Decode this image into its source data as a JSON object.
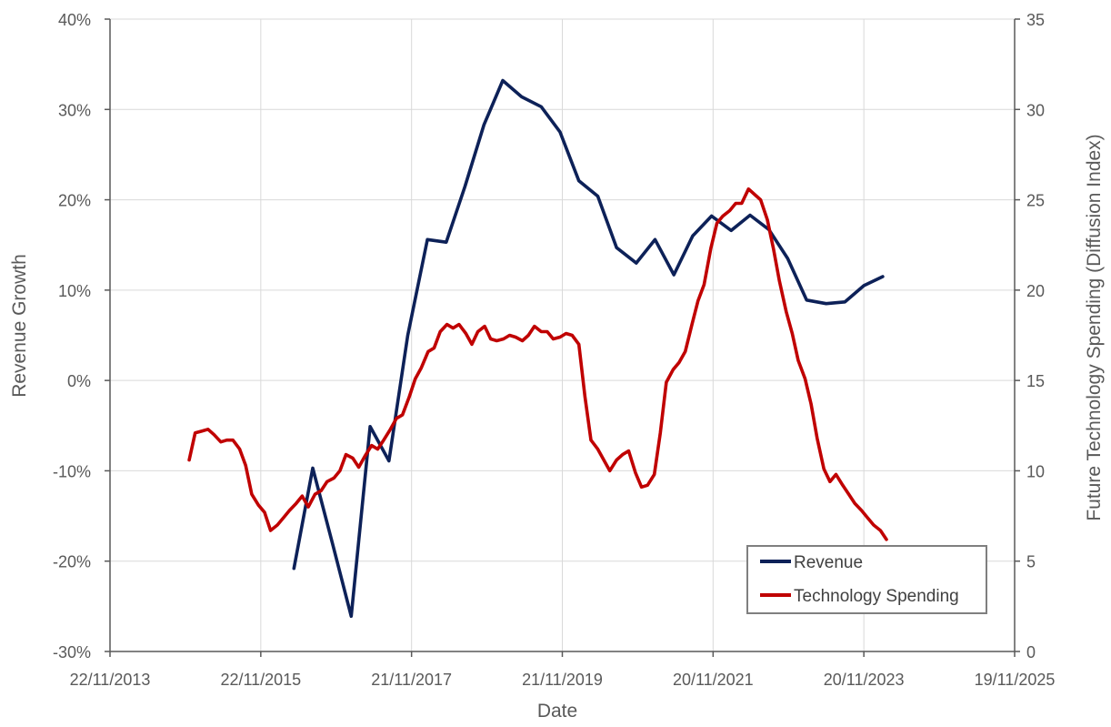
{
  "chart_data": {
    "type": "line",
    "xlabel": "Date",
    "ylabel_left": "Revenue Growth",
    "ylabel_right": "Future Technology Spending (Diffusion Index)",
    "x_ticks": [
      "22/11/2013",
      "22/11/2015",
      "21/11/2017",
      "21/11/2019",
      "20/11/2021",
      "20/11/2023",
      "19/11/2025"
    ],
    "x_tick_years": [
      2013.89,
      2015.89,
      2017.89,
      2019.89,
      2021.89,
      2023.89,
      2025.89
    ],
    "xlim": [
      2013.89,
      2025.89
    ],
    "y_left_ticks": [
      "-30%",
      "-20%",
      "-10%",
      "0%",
      "10%",
      "20%",
      "30%",
      "40%"
    ],
    "y_left_range": [
      -30,
      40
    ],
    "y_right_ticks": [
      "0",
      "5",
      "10",
      "15",
      "20",
      "25",
      "30",
      "35"
    ],
    "y_right_range": [
      0,
      35
    ],
    "grid": true,
    "legend_position": "bottom-right",
    "series": [
      {
        "name": "Revenue",
        "label": "Revenue",
        "color": "#0d2158",
        "axis": "left",
        "x": [
          2016.33,
          2016.58,
          2016.84,
          2017.09,
          2017.34,
          2017.59,
          2017.84,
          2018.1,
          2018.1,
          2018.35,
          2018.6,
          2018.85,
          2019.1,
          2019.35,
          2019.61,
          2019.86,
          2020.11,
          2020.36,
          2020.61,
          2020.87,
          2021.12,
          2021.37,
          2021.62,
          2021.87,
          2022.13,
          2022.38,
          2022.63,
          2022.88,
          2023.13,
          2023.39,
          2023.64,
          2023.89,
          2024.14
        ],
        "y": [
          -20.8,
          -9.7,
          -18.0,
          -26.1,
          -5.1,
          -8.9,
          5.0,
          15.6,
          15.6,
          15.3,
          21.5,
          28.3,
          33.2,
          31.4,
          30.3,
          27.5,
          22.1,
          20.4,
          14.7,
          13.0,
          15.6,
          11.7,
          16.0,
          18.2,
          16.6,
          18.3,
          16.7,
          13.5,
          8.9,
          8.5,
          8.7,
          10.5,
          11.5
        ]
      },
      {
        "name": "Technology Spending",
        "label": "Technology Spending",
        "color": "#c00000",
        "axis": "right",
        "x": [
          2014.94,
          2015.02,
          2015.11,
          2015.19,
          2015.27,
          2015.36,
          2015.44,
          2015.52,
          2015.61,
          2015.69,
          2015.77,
          2015.86,
          2015.94,
          2016.02,
          2016.11,
          2016.19,
          2016.27,
          2016.36,
          2016.44,
          2016.52,
          2016.61,
          2016.69,
          2016.77,
          2016.86,
          2016.94,
          2017.02,
          2017.11,
          2017.19,
          2017.27,
          2017.36,
          2017.44,
          2017.52,
          2017.61,
          2017.69,
          2017.77,
          2017.86,
          2017.94,
          2018.02,
          2018.11,
          2018.19,
          2018.27,
          2018.36,
          2018.44,
          2018.52,
          2018.61,
          2018.69,
          2018.77,
          2018.86,
          2018.94,
          2019.02,
          2019.11,
          2019.19,
          2019.27,
          2019.36,
          2019.44,
          2019.52,
          2019.61,
          2019.69,
          2019.77,
          2019.86,
          2019.94,
          2020.02,
          2020.11,
          2020.19,
          2020.27,
          2020.36,
          2020.44,
          2020.52,
          2020.61,
          2020.69,
          2020.77,
          2020.86,
          2020.94,
          2021.02,
          2021.11,
          2021.19,
          2021.27,
          2021.36,
          2021.44,
          2021.52,
          2021.61,
          2021.69,
          2021.77,
          2021.86,
          2021.94,
          2022.02,
          2022.11,
          2022.19,
          2022.27,
          2022.36,
          2022.44,
          2022.52,
          2022.61,
          2022.69,
          2022.77,
          2022.86,
          2022.94,
          2023.02,
          2023.11,
          2023.19,
          2023.27,
          2023.36,
          2023.44,
          2023.52,
          2023.61,
          2023.69,
          2023.77,
          2023.86,
          2023.94,
          2024.02,
          2024.11,
          2024.19
        ],
        "y": [
          10.6,
          12.1,
          12.2,
          12.3,
          12.0,
          11.6,
          11.7,
          11.7,
          11.2,
          10.3,
          8.7,
          8.1,
          7.7,
          6.7,
          7.0,
          7.4,
          7.8,
          8.2,
          8.6,
          8.0,
          8.7,
          8.9,
          9.4,
          9.6,
          10.0,
          10.9,
          10.7,
          10.2,
          10.8,
          11.4,
          11.2,
          11.7,
          12.3,
          12.9,
          13.1,
          14.1,
          15.1,
          15.7,
          16.6,
          16.8,
          17.7,
          18.1,
          17.9,
          18.1,
          17.6,
          17.0,
          17.7,
          18.0,
          17.3,
          17.2,
          17.3,
          17.5,
          17.4,
          17.2,
          17.5,
          18.0,
          17.7,
          17.7,
          17.3,
          17.4,
          17.6,
          17.5,
          17.0,
          14.1,
          11.7,
          11.2,
          10.6,
          10.0,
          10.6,
          10.9,
          11.1,
          9.9,
          9.1,
          9.2,
          9.8,
          12.1,
          14.9,
          15.6,
          16.0,
          16.6,
          18.1,
          19.4,
          20.3,
          22.3,
          23.7,
          24.1,
          24.4,
          24.8,
          24.8,
          25.6,
          25.3,
          25.0,
          23.9,
          22.3,
          20.5,
          18.8,
          17.6,
          16.1,
          15.1,
          13.7,
          11.8,
          10.1,
          9.4,
          9.8,
          9.2,
          8.7,
          8.2,
          7.8,
          7.4,
          7.0,
          6.7,
          6.2
        ]
      }
    ]
  }
}
